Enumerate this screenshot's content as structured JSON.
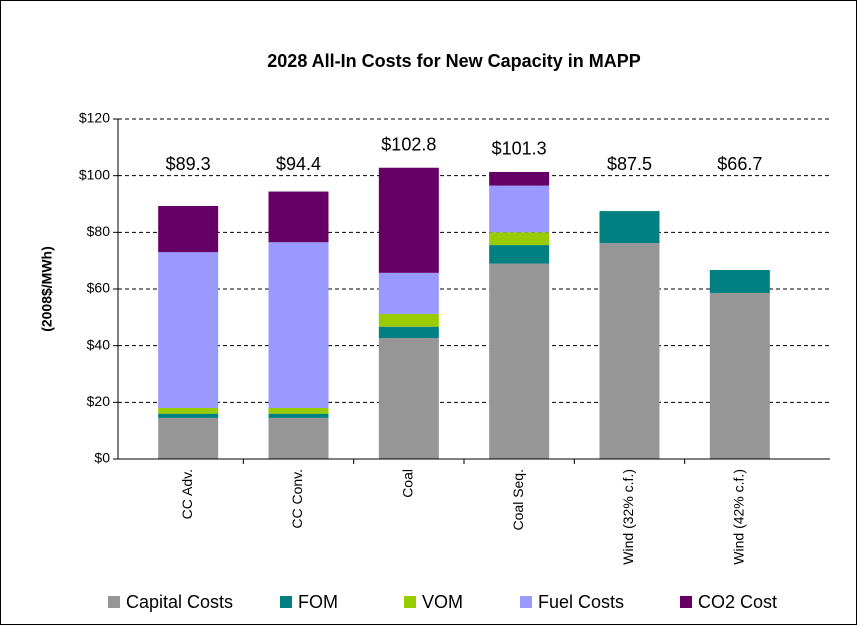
{
  "chart_data": {
    "type": "stacked_bar",
    "title": "2028 All-In Costs for New Capacity in MAPP",
    "y_label": "(2008$/MWh)",
    "categories": [
      "CC Adv.",
      "CC Conv.",
      "Coal",
      "Coal Seq.",
      "Wind (32% c.f.)",
      "Wind (42% c.f.)"
    ],
    "series": [
      {
        "name": "Capital Costs",
        "color": "#969696",
        "values": [
          14.5,
          14.5,
          42.7,
          69,
          76.2,
          58.6
        ]
      },
      {
        "name": "FOM",
        "color": "#008080",
        "values": [
          1.5,
          1.5,
          4,
          6.5,
          11.3,
          8.1
        ]
      },
      {
        "name": "VOM",
        "color": "#99cc00",
        "values": [
          2,
          2,
          4.5,
          4.5,
          0,
          0
        ]
      },
      {
        "name": "Fuel Costs",
        "color": "#9999ff",
        "values": [
          55,
          58.5,
          14.5,
          16.5,
          0,
          0
        ]
      },
      {
        "name": "CO2 Cost",
        "color": "#660066",
        "values": [
          16.3,
          17.9,
          37.1,
          4.8,
          0,
          0
        ]
      }
    ],
    "totals": [
      89.3,
      94.4,
      102.8,
      101.3,
      87.5,
      66.7
    ],
    "total_labels": [
      "$89.3",
      "$94.4",
      "$102.8",
      "$101.3",
      "$87.5",
      "$66.7"
    ],
    "ylim": [
      0,
      120
    ],
    "yticks": [
      {
        "value": 0,
        "label": "$0"
      },
      {
        "value": 20,
        "label": "$20"
      },
      {
        "value": 40,
        "label": "$40"
      },
      {
        "value": 60,
        "label": "$60"
      },
      {
        "value": 80,
        "label": "$80"
      },
      {
        "value": 100,
        "label": "$100"
      },
      {
        "value": 120,
        "label": "$120"
      }
    ],
    "grid": true,
    "legend": "bottom"
  }
}
